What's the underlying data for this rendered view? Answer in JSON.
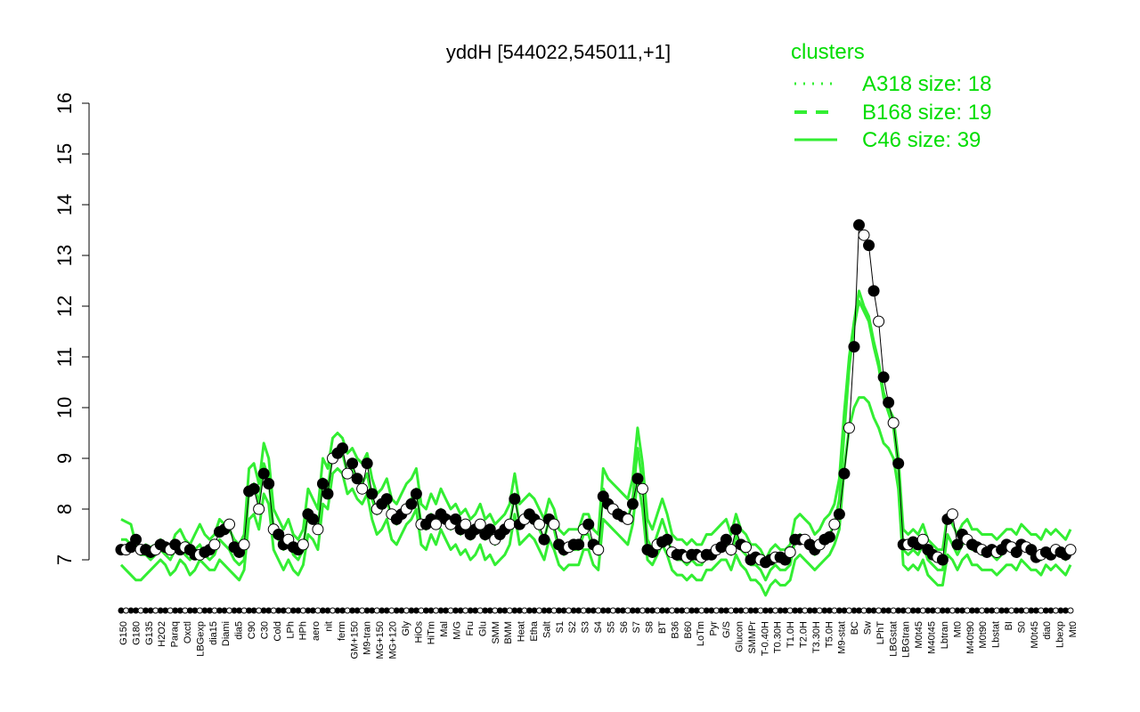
{
  "colors": {
    "cluster": "#33ee33",
    "mean": "#000000",
    "dot_fill_open": "#ffffff",
    "dot_fill_filled": "#000000",
    "legend": "#00dd00"
  },
  "chart_data": {
    "type": "line",
    "title": "yddH [544022,545011,+1]",
    "xlabel": "",
    "ylabel": "",
    "ylim": [
      7,
      16
    ],
    "yticks": [
      7,
      8,
      9,
      10,
      11,
      12,
      13,
      14,
      15,
      16
    ],
    "xtick_labels": [
      "G150",
      "G180",
      "G135",
      "H2O2",
      "Paraq",
      "Oxctl",
      "LBGexp",
      "dia15",
      "Diami",
      "dia5",
      "C90",
      "C30",
      "Cold",
      "LPh",
      "HPh",
      "aero",
      "nit",
      "ferm",
      "GM+150",
      "M9-tran",
      "MG+150",
      "MG+120",
      "Gly",
      "HiOs",
      "HiTm",
      "Mal",
      "M/G",
      "Fru",
      "Glu",
      "SMM",
      "BMM",
      "Heat",
      "Etha",
      "Salt",
      "S1",
      "S2",
      "S3",
      "S4",
      "S5",
      "S6",
      "S7",
      "S8",
      "BT",
      "B36",
      "B60",
      "LoTm",
      "Pyr",
      "G/S",
      "Glucon",
      "SMMPr",
      "T-0.40H",
      "T0.30H",
      "T1.0H",
      "T2.0H",
      "T3.30H",
      "T5.0H",
      "M9-stat",
      "BC",
      "Sw",
      "LPhT",
      "LBGstat",
      "LBGtran",
      "M0t45",
      "M40t45",
      "Lbtran",
      "Mt0",
      "M40t90",
      "M0t90",
      "Lbstat",
      "BI",
      "S0",
      "M0t45",
      "dia0",
      "Lbexp",
      "Mt0"
    ],
    "legend": {
      "title": "clusters",
      "entries": [
        {
          "label": "A318 size: 18",
          "style": "dotted"
        },
        {
          "label": "B168 size: 19",
          "style": "dashed"
        },
        {
          "label": "C46 size: 39",
          "style": "solid"
        }
      ]
    },
    "series": [
      {
        "style": "mean",
        "values": [
          7.2,
          7.2,
          7.25,
          7.4,
          7.2,
          7.2,
          7.15,
          7.2,
          7.3,
          7.25,
          7.2,
          7.3,
          7.2,
          7.25,
          7.2,
          7.1,
          7.1,
          7.15,
          7.2,
          7.3,
          7.55,
          7.6,
          7.7,
          7.25,
          7.15,
          7.3,
          8.35,
          8.4,
          8.0,
          8.7,
          8.5,
          7.6,
          7.5,
          7.3,
          7.4,
          7.25,
          7.2,
          7.3,
          7.9,
          7.8,
          7.6,
          8.5,
          8.3,
          9.0,
          9.1,
          9.2,
          8.7,
          8.9,
          8.6,
          8.4,
          8.9,
          8.3,
          8.0,
          8.1,
          8.2,
          7.9,
          7.8,
          7.9,
          8.0,
          8.1,
          8.3,
          7.7,
          7.7,
          7.8,
          7.7,
          7.9,
          7.8,
          7.7,
          7.8,
          7.6,
          7.7,
          7.5,
          7.6,
          7.7,
          7.5,
          7.6,
          7.4,
          7.5,
          7.6,
          7.7,
          8.2,
          7.7,
          7.8,
          7.9,
          7.8,
          7.7,
          7.4,
          7.8,
          7.7,
          7.3,
          7.2,
          7.25,
          7.3,
          7.3,
          7.6,
          7.7,
          7.3,
          7.2,
          8.25,
          8.1,
          8.0,
          7.9,
          7.85,
          7.8,
          8.1,
          8.6,
          8.4,
          7.2,
          7.15,
          7.3,
          7.35,
          7.4,
          7.15,
          7.1,
          7.1,
          7.05,
          7.1,
          7.1,
          7.05,
          7.1,
          7.1,
          7.2,
          7.25,
          7.4,
          7.2,
          7.6,
          7.3,
          7.25,
          7.0,
          7.05,
          7.0,
          6.95,
          7.0,
          7.05,
          7.05,
          7.0,
          7.15,
          7.4,
          7.4,
          7.4,
          7.3,
          7.2,
          7.3,
          7.4,
          7.45,
          7.7,
          7.9,
          8.7,
          9.6,
          11.2,
          13.6,
          13.4,
          13.2,
          12.3,
          11.7,
          10.6,
          10.1,
          9.7,
          8.9,
          7.3,
          7.3,
          7.35,
          7.3,
          7.4,
          7.2,
          7.1,
          7.05,
          7.0,
          7.8,
          7.9,
          7.3,
          7.5,
          7.4,
          7.3,
          7.25,
          7.2,
          7.15,
          7.2,
          7.15,
          7.2,
          7.3,
          7.25,
          7.15,
          7.3,
          7.25,
          7.2,
          7.05,
          7.1,
          7.15,
          7.1,
          7.2,
          7.15,
          7.1,
          7.2
        ]
      },
      {
        "style": "cluster",
        "values": [
          7.8,
          7.75,
          7.7,
          7.3,
          7.2,
          7.3,
          7.25,
          7.3,
          7.4,
          7.3,
          7.2,
          7.5,
          7.6,
          7.4,
          7.3,
          7.5,
          7.7,
          7.5,
          7.4,
          7.5,
          7.8,
          7.7,
          7.6,
          7.4,
          7.3,
          7.5,
          8.8,
          8.9,
          8.5,
          9.3,
          9.0,
          8.0,
          7.8,
          7.6,
          7.8,
          7.5,
          7.4,
          7.6,
          8.4,
          8.2,
          8.0,
          9.0,
          8.8,
          9.4,
          9.5,
          9.4,
          9.1,
          9.2,
          9.0,
          8.9,
          9.1,
          8.6,
          8.3,
          8.4,
          8.6,
          8.2,
          8.1,
          8.3,
          8.5,
          8.6,
          8.8,
          8.1,
          8.0,
          8.3,
          8.1,
          8.4,
          8.2,
          8.0,
          8.1,
          7.9,
          8.0,
          7.8,
          7.9,
          8.1,
          7.8,
          7.9,
          7.7,
          7.8,
          7.9,
          8.1,
          8.7,
          8.1,
          8.2,
          8.3,
          8.2,
          8.0,
          7.8,
          8.2,
          8.0,
          7.6,
          7.5,
          7.6,
          7.6,
          7.6,
          7.9,
          7.9,
          7.6,
          7.5,
          8.8,
          8.6,
          8.5,
          8.4,
          8.3,
          8.2,
          8.6,
          9.6,
          8.9,
          7.8,
          7.6,
          7.9,
          8.2,
          7.9,
          7.5,
          7.4,
          7.4,
          7.3,
          7.4,
          7.3,
          7.3,
          7.5,
          7.5,
          7.6,
          7.7,
          7.8,
          7.5,
          7.9,
          7.6,
          7.5,
          7.3,
          7.3,
          7.2,
          7.0,
          7.2,
          7.3,
          7.2,
          7.2,
          7.3,
          7.8,
          7.9,
          7.8,
          7.7,
          7.5,
          7.6,
          7.8,
          7.9,
          8.1,
          8.6,
          9.9,
          11.0,
          11.7,
          12.3,
          12.0,
          11.8,
          11.3,
          10.9,
          10.3,
          10.0,
          9.8,
          9.0,
          7.6,
          7.5,
          7.6,
          7.5,
          7.7,
          7.4,
          7.3,
          7.2,
          7.2,
          7.9,
          7.7,
          7.5,
          7.7,
          7.8,
          7.6,
          7.6,
          7.5,
          7.5,
          7.5,
          7.4,
          7.5,
          7.6,
          7.6,
          7.5,
          7.7,
          7.6,
          7.5,
          7.5,
          7.4,
          7.6,
          7.5,
          7.6,
          7.5,
          7.4,
          7.6
        ]
      },
      {
        "style": "cluster",
        "values": [
          7.4,
          7.4,
          7.3,
          7.2,
          7.1,
          7.1,
          7.0,
          7.1,
          7.2,
          7.1,
          7.0,
          7.2,
          7.3,
          7.1,
          7.0,
          7.2,
          7.3,
          7.1,
          7.0,
          7.1,
          7.4,
          7.3,
          7.2,
          7.0,
          6.9,
          7.0,
          8.4,
          8.5,
          8.1,
          8.9,
          8.6,
          7.6,
          7.4,
          7.2,
          7.4,
          7.1,
          7.0,
          7.2,
          8.0,
          7.8,
          7.6,
          8.6,
          8.4,
          9.1,
          9.2,
          9.1,
          8.7,
          8.8,
          8.6,
          8.5,
          8.7,
          8.2,
          7.9,
          8.0,
          8.2,
          7.8,
          7.7,
          7.9,
          8.1,
          8.2,
          8.4,
          7.7,
          7.6,
          7.9,
          7.7,
          8.0,
          7.8,
          7.6,
          7.7,
          7.5,
          7.6,
          7.4,
          7.5,
          7.7,
          7.4,
          7.5,
          7.3,
          7.4,
          7.5,
          7.7,
          8.3,
          7.7,
          7.8,
          7.9,
          7.8,
          7.6,
          7.4,
          7.8,
          7.6,
          7.2,
          7.1,
          7.2,
          7.2,
          7.2,
          7.5,
          7.5,
          7.2,
          7.1,
          8.4,
          8.2,
          8.1,
          8.0,
          7.9,
          7.8,
          8.2,
          9.2,
          8.5,
          7.4,
          7.2,
          7.5,
          7.8,
          7.5,
          7.1,
          7.0,
          7.0,
          6.9,
          7.0,
          6.9,
          6.9,
          7.1,
          7.1,
          7.2,
          7.3,
          7.4,
          7.1,
          7.5,
          7.2,
          7.1,
          6.9,
          6.9,
          6.8,
          6.6,
          6.8,
          6.9,
          6.8,
          6.8,
          6.9,
          7.4,
          7.5,
          7.4,
          7.3,
          7.1,
          7.2,
          7.4,
          7.5,
          7.7,
          8.2,
          9.5,
          10.8,
          11.6,
          12.1,
          11.9,
          11.7,
          11.2,
          10.8,
          10.2,
          9.9,
          9.6,
          8.8,
          7.2,
          7.1,
          7.2,
          7.1,
          7.3,
          7.0,
          6.9,
          6.8,
          6.8,
          7.5,
          7.3,
          7.1,
          7.3,
          7.4,
          7.2,
          7.2,
          7.1,
          7.1,
          7.1,
          7.0,
          7.1,
          7.2,
          7.2,
          7.1,
          7.3,
          7.2,
          7.1,
          7.1,
          7.0,
          7.2,
          7.1,
          7.2,
          7.1,
          7.0,
          7.2
        ]
      },
      {
        "style": "cluster",
        "values": [
          6.9,
          6.8,
          6.7,
          6.6,
          6.6,
          6.7,
          6.8,
          6.9,
          7.0,
          6.9,
          6.7,
          6.8,
          7.0,
          6.9,
          6.7,
          6.8,
          7.0,
          6.9,
          6.8,
          6.8,
          7.0,
          6.9,
          6.8,
          6.7,
          6.6,
          6.8,
          7.8,
          7.9,
          7.6,
          8.3,
          8.1,
          7.2,
          7.0,
          6.8,
          7.0,
          6.8,
          6.7,
          6.9,
          7.5,
          7.4,
          7.2,
          8.1,
          8.0,
          8.7,
          8.8,
          8.7,
          8.3,
          8.4,
          8.2,
          8.1,
          8.3,
          7.8,
          7.5,
          7.6,
          7.8,
          7.4,
          7.3,
          7.5,
          7.7,
          7.8,
          8.0,
          7.3,
          7.2,
          7.5,
          7.3,
          7.6,
          7.4,
          7.2,
          7.3,
          7.1,
          7.2,
          7.0,
          7.1,
          7.3,
          7.0,
          7.1,
          6.9,
          7.0,
          7.1,
          7.3,
          7.9,
          7.3,
          7.4,
          7.5,
          7.4,
          7.2,
          7.0,
          7.4,
          7.2,
          6.9,
          6.8,
          6.9,
          6.9,
          6.9,
          7.2,
          7.2,
          6.9,
          6.8,
          7.8,
          7.7,
          7.6,
          7.5,
          7.4,
          7.3,
          7.7,
          8.6,
          8.0,
          7.0,
          6.9,
          7.1,
          7.3,
          7.1,
          6.8,
          6.7,
          6.7,
          6.6,
          6.7,
          6.6,
          6.6,
          6.8,
          6.8,
          6.9,
          7.0,
          7.0,
          6.8,
          7.1,
          6.9,
          6.8,
          6.6,
          6.6,
          6.5,
          6.3,
          6.5,
          6.6,
          6.5,
          6.5,
          6.6,
          7.0,
          7.1,
          7.0,
          6.9,
          6.8,
          6.9,
          7.0,
          7.1,
          7.3,
          7.6,
          8.8,
          9.6,
          10.0,
          10.2,
          10.2,
          10.1,
          9.8,
          9.6,
          9.3,
          9.2,
          9.0,
          8.4,
          6.9,
          6.8,
          6.9,
          6.8,
          7.0,
          6.7,
          6.6,
          6.5,
          6.5,
          7.1,
          7.0,
          6.8,
          7.0,
          7.1,
          6.9,
          6.9,
          6.8,
          6.8,
          6.8,
          6.7,
          6.8,
          6.9,
          6.9,
          6.8,
          7.0,
          6.9,
          6.8,
          6.8,
          6.7,
          6.9,
          6.8,
          6.9,
          6.8,
          6.7,
          6.9
        ]
      }
    ]
  }
}
